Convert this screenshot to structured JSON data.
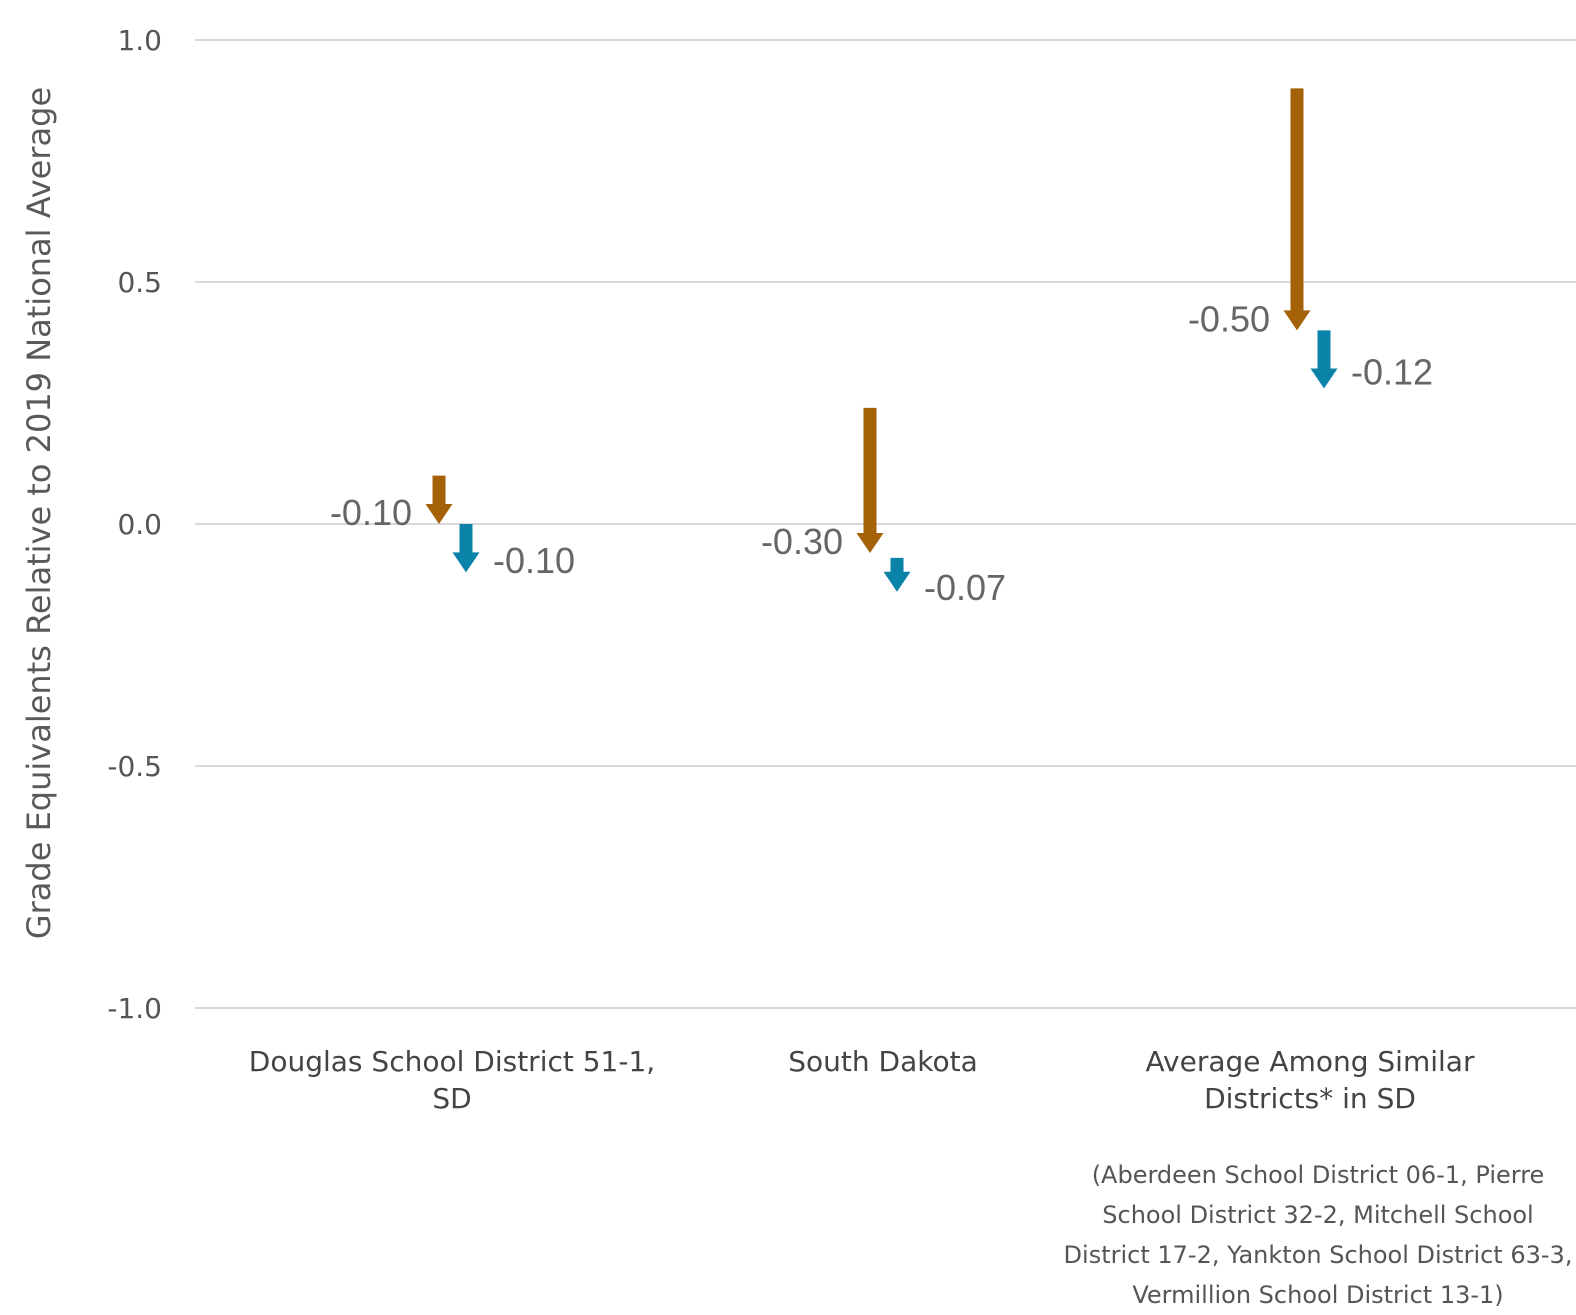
{
  "colors": {
    "series1": "#a56108",
    "series2": "#0b82a8",
    "grid": "#d9d9d9"
  },
  "chart_data": {
    "type": "arrow",
    "ylabel": "Grade Equivalents Relative to 2019 National Average",
    "ylim": [
      -1.0,
      1.0
    ],
    "yticks": [
      "1.0",
      "0.5",
      "0.0",
      "-0.5",
      "-1.0"
    ],
    "categories": [
      {
        "lines": [
          "Douglas School District 51-1,",
          "SD"
        ]
      },
      {
        "lines": [
          "South Dakota"
        ]
      },
      {
        "lines": [
          "Average Among Similar",
          "Districts* in SD"
        ],
        "note": [
          "(Aberdeen School District 06-1, Pierre",
          "School District 32-2, Mitchell School",
          "District 17-2, Yankton School District 63-3,",
          "Vermillion School District 13-1)"
        ]
      }
    ],
    "series": [
      {
        "color": "#a56108",
        "points": [
          {
            "start": 0.1,
            "end": 0.0,
            "label": "-0.10"
          },
          {
            "start": 0.24,
            "end": -0.06,
            "label": "-0.30"
          },
          {
            "start": 0.9,
            "end": 0.4,
            "label": "-0.50"
          }
        ]
      },
      {
        "color": "#0b82a8",
        "points": [
          {
            "start": 0.0,
            "end": -0.1,
            "label": "-0.10"
          },
          {
            "start": -0.07,
            "end": -0.14,
            "label": "-0.07"
          },
          {
            "start": 0.4,
            "end": 0.28,
            "label": "-0.12"
          }
        ]
      }
    ],
    "grid": true
  }
}
